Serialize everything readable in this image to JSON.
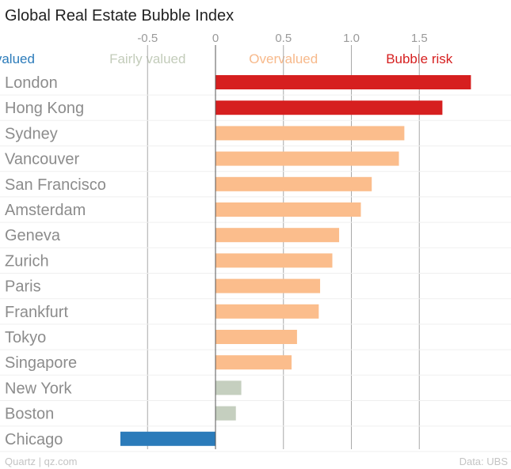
{
  "chart_data": {
    "type": "bar",
    "orientation": "horizontal",
    "title": "Global Real Estate Bubble Index",
    "xlim": [
      -0.75,
      2.15
    ],
    "xticks": [
      {
        "value": -0.5,
        "label": "-0.5"
      },
      {
        "value": 0,
        "label": "0"
      },
      {
        "value": 0.5,
        "label": "0.5"
      },
      {
        "value": 1.0,
        "label": "1.0"
      },
      {
        "value": 1.5,
        "label": "1.5"
      }
    ],
    "zones": [
      {
        "name": "Undervalued",
        "label_value": -1.0,
        "color": "#2b7bba"
      },
      {
        "name": "Fairly valued",
        "label_value": 0.0,
        "color": "#c3ccba"
      },
      {
        "name": "Overvalued",
        "label_value": 1.0,
        "color": "#f7b98b"
      },
      {
        "name": "Bubble risk",
        "label_value": 2.0,
        "color": "#d61f1f"
      }
    ],
    "categories": [
      "London",
      "Hong Kong",
      "Sydney",
      "Vancouver",
      "San Francisco",
      "Amsterdam",
      "Geneva",
      "Zurich",
      "Paris",
      "Frankfurt",
      "Tokyo",
      "Singapore",
      "New York",
      "Boston",
      "Chicago"
    ],
    "values": [
      1.88,
      1.67,
      1.39,
      1.35,
      1.15,
      1.07,
      0.91,
      0.86,
      0.77,
      0.76,
      0.6,
      0.56,
      0.19,
      0.15,
      -0.7
    ],
    "bar_colors": [
      "#d61f1f",
      "#d61f1f",
      "#fbbd8c",
      "#fbbd8c",
      "#fbbd8c",
      "#fbbd8c",
      "#fbbd8c",
      "#fbbd8c",
      "#fbbd8c",
      "#fbbd8c",
      "#fbbd8c",
      "#fbbd8c",
      "#c5cfbf",
      "#c5cfbf",
      "#2b7bba"
    ],
    "source": "Data: UBS",
    "credit": "Quartz | qz.com"
  }
}
